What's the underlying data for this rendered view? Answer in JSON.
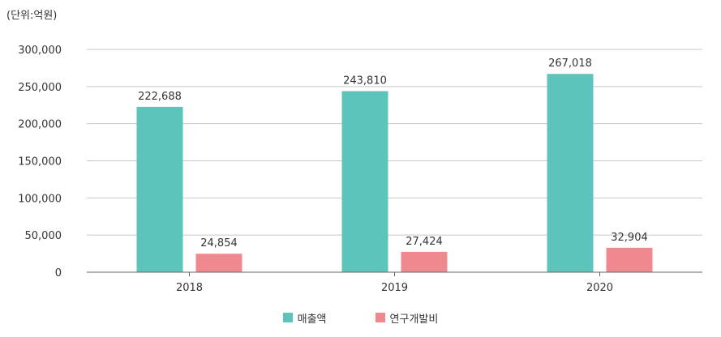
{
  "unit_label": "(단위:억원)",
  "chart_data": {
    "type": "bar",
    "categories": [
      "2018",
      "2019",
      "2020"
    ],
    "series": [
      {
        "name": "매출액",
        "values": [
          222688,
          243810,
          267018
        ],
        "color": "#5cc4bb"
      },
      {
        "name": "연구개발비",
        "values": [
          24854,
          27424,
          32904
        ],
        "color": "#f08890"
      }
    ],
    "data_labels": [
      [
        "222,688",
        "243,810",
        "267,018"
      ],
      [
        "24,854",
        "27,424",
        "32,904"
      ]
    ],
    "ylim": [
      0,
      300000
    ],
    "yticks": [
      0,
      50000,
      100000,
      150000,
      200000,
      250000,
      300000
    ],
    "ytick_labels": [
      "0",
      "50,000",
      "100,000",
      "150,000",
      "200,000",
      "250,000",
      "300,000"
    ],
    "grid": true,
    "legend_position": "bottom"
  }
}
